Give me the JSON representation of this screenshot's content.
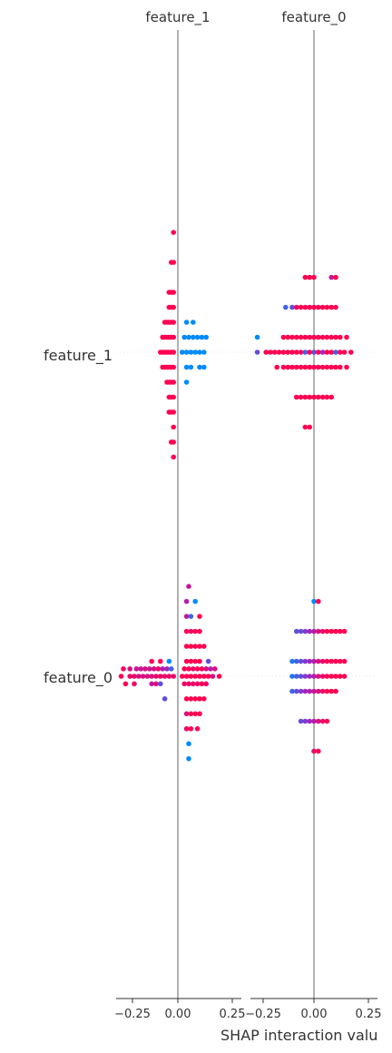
{
  "chart_data": {
    "type": "scatter",
    "subtype": "shap_interaction_summary",
    "xlabel": "SHAP interaction valu",
    "xlim": [
      -0.28,
      0.28
    ],
    "x_ticks": [
      -0.25,
      0.0,
      0.25
    ],
    "x_tick_labels": [
      "−0.25",
      "0.00",
      "0.25"
    ],
    "x_tick_labels_right": [
      "−0.25",
      "0.00",
      "0.25"
    ],
    "columns": [
      "feature_1",
      "feature_0"
    ],
    "rows": [
      "feature_1",
      "feature_0"
    ],
    "colors": {
      "low": "#008bfb",
      "high": "#ff0052",
      "mid": "#a126c1",
      "zero_line": "#999999",
      "row_guide": "#e6e6e6"
    },
    "panels": [
      {
        "column": "feature_1",
        "row": "feature_1",
        "groups": [
          {
            "offset": -8,
            "xs": [
              -0.02
            ],
            "c": [
              1
            ]
          },
          {
            "offset": -6,
            "xs": [
              -0.03,
              -0.02
            ],
            "c": [
              1,
              1
            ]
          },
          {
            "offset": -4,
            "xs": [
              -0.04,
              -0.03,
              -0.02
            ],
            "c": [
              1,
              1,
              1
            ]
          },
          {
            "offset": -3,
            "xs": [
              -0.04,
              -0.03,
              -0.02
            ],
            "c": [
              1,
              1,
              1
            ]
          },
          {
            "offset": -2,
            "xs": [
              -0.06,
              -0.05,
              -0.04,
              -0.03,
              -0.02,
              0.04,
              0.07
            ],
            "c": [
              1,
              1,
              1,
              1,
              1,
              0,
              0
            ]
          },
          {
            "offset": -1,
            "xs": [
              -0.07,
              -0.06,
              -0.05,
              -0.04,
              -0.03,
              -0.02,
              0.03,
              0.05,
              0.07,
              0.09,
              0.11,
              0.13
            ],
            "c": [
              1,
              1,
              1,
              1,
              1,
              1,
              0,
              0,
              0,
              0,
              0,
              0
            ]
          },
          {
            "offset": 0,
            "xs": [
              -0.08,
              -0.07,
              -0.06,
              -0.05,
              -0.04,
              -0.03,
              -0.02,
              0.02,
              0.04,
              0.06,
              0.08,
              0.1,
              0.12
            ],
            "c": [
              1,
              1,
              1,
              1,
              1,
              1,
              1,
              0,
              0,
              0,
              0,
              0,
              0
            ]
          },
          {
            "offset": 1,
            "xs": [
              -0.07,
              -0.06,
              -0.05,
              -0.04,
              -0.03,
              -0.02,
              0.04,
              0.06,
              0.1,
              0.12
            ],
            "c": [
              1,
              1,
              1,
              1,
              1,
              1,
              0,
              0,
              0,
              0
            ]
          },
          {
            "offset": 2,
            "xs": [
              -0.05,
              -0.04,
              -0.03,
              -0.02,
              0.04
            ],
            "c": [
              1,
              1,
              1,
              1,
              0
            ]
          },
          {
            "offset": 3,
            "xs": [
              -0.04,
              -0.03,
              -0.02
            ],
            "c": [
              1,
              1,
              1
            ]
          },
          {
            "offset": 4,
            "xs": [
              -0.04,
              -0.03,
              -0.02
            ],
            "c": [
              1,
              1,
              1
            ]
          },
          {
            "offset": 5,
            "xs": [
              -0.02
            ],
            "c": [
              1
            ]
          },
          {
            "offset": 6,
            "xs": [
              -0.03,
              -0.02
            ],
            "c": [
              1,
              1
            ]
          },
          {
            "offset": 7,
            "xs": [
              -0.02
            ],
            "c": [
              1
            ]
          }
        ]
      },
      {
        "column": "feature_0",
        "row": "feature_1",
        "groups": [
          {
            "offset": -5,
            "xs": [
              -0.04,
              -0.02,
              0.0,
              0.08,
              0.1
            ],
            "c": [
              1,
              1,
              1,
              0.7,
              1
            ]
          },
          {
            "offset": -3,
            "xs": [
              -0.13,
              -0.1,
              -0.08,
              -0.06,
              -0.04,
              -0.02,
              0.0,
              0.02,
              0.04,
              0.06,
              0.08,
              0.1
            ],
            "c": [
              0.2,
              0.3,
              0.9,
              1,
              1,
              1,
              1,
              1,
              1,
              1,
              1,
              1
            ]
          },
          {
            "offset": -1,
            "xs": [
              -0.26,
              -0.14,
              -0.12,
              -0.1,
              -0.08,
              -0.06,
              -0.04,
              -0.02,
              0.0,
              0.02,
              0.04,
              0.06,
              0.08,
              0.1,
              0.12,
              0.15
            ],
            "c": [
              0,
              1,
              1,
              1,
              1,
              1,
              1,
              1,
              1,
              1,
              1,
              1,
              1,
              1,
              1,
              1
            ]
          },
          {
            "offset": 0,
            "xs": [
              -0.26,
              -0.22,
              -0.2,
              -0.18,
              -0.16,
              -0.14,
              -0.12,
              -0.1,
              -0.08,
              -0.06,
              -0.04,
              -0.02,
              0.0,
              0.02,
              0.04,
              0.06,
              0.08,
              0.1,
              0.12,
              0.14,
              0.17
            ],
            "c": [
              0.3,
              1,
              1,
              1,
              1,
              1,
              1,
              1,
              1,
              1,
              0.2,
              1,
              0.3,
              1,
              0.5,
              1,
              1,
              0.2,
              1,
              1,
              1
            ]
          },
          {
            "offset": 1,
            "xs": [
              -0.17,
              -0.14,
              -0.12,
              -0.1,
              -0.08,
              -0.06,
              -0.04,
              -0.02,
              0.0,
              0.02,
              0.04,
              0.06,
              0.08,
              0.1,
              0.12,
              0.15
            ],
            "c": [
              1,
              1,
              1,
              1,
              1,
              1,
              1,
              1,
              1,
              1,
              1,
              1,
              1,
              1,
              1,
              1
            ]
          },
          {
            "offset": 3,
            "xs": [
              -0.08,
              -0.06,
              -0.04,
              -0.02,
              0.0,
              0.02,
              0.04,
              0.06,
              0.08
            ],
            "c": [
              1,
              1,
              1,
              1,
              1,
              1,
              1,
              1,
              1
            ]
          },
          {
            "offset": 5,
            "xs": [
              -0.04,
              -0.02
            ],
            "c": [
              1,
              1
            ]
          }
        ]
      },
      {
        "column": "feature_1",
        "row": "feature_0",
        "groups": [
          {
            "offset": -6,
            "xs": [
              0.05
            ],
            "c": [
              0.7
            ]
          },
          {
            "offset": -5,
            "xs": [
              0.04,
              0.08
            ],
            "c": [
              0.6,
              0
            ]
          },
          {
            "offset": -4,
            "xs": [
              0.04,
              0.06,
              0.1
            ],
            "c": [
              0.7,
              0.2,
              1
            ]
          },
          {
            "offset": -3,
            "xs": [
              0.04,
              0.06,
              0.08,
              0.1
            ],
            "c": [
              1,
              0.9,
              1,
              1
            ]
          },
          {
            "offset": -2,
            "xs": [
              0.04,
              0.06,
              0.08,
              0.1,
              0.12
            ],
            "c": [
              1,
              1,
              1,
              1,
              1
            ]
          },
          {
            "offset": -1,
            "xs": [
              -0.12,
              -0.08,
              -0.04,
              0.04,
              0.06,
              0.08,
              0.1,
              0.14
            ],
            "c": [
              1,
              1,
              0,
              1,
              1,
              1,
              1,
              0.3
            ]
          },
          {
            "offset": -0.5,
            "xs": [
              -0.25,
              -0.22,
              -0.19,
              -0.17,
              -0.15,
              -0.13,
              -0.11,
              -0.09,
              -0.07,
              -0.05,
              -0.03,
              0.03,
              0.05,
              0.07,
              0.09,
              0.11,
              0.13,
              0.15,
              0.17
            ],
            "c": [
              1,
              0.8,
              0.7,
              0.7,
              0.8,
              0.7,
              0.8,
              0.9,
              0.6,
              0.5,
              0.2,
              1,
              1,
              0.9,
              1,
              0.9,
              0.8,
              0.6,
              0.8
            ]
          },
          {
            "offset": 0,
            "xs": [
              -0.26,
              -0.22,
              -0.2,
              -0.18,
              -0.16,
              -0.14,
              -0.12,
              -0.1,
              -0.08,
              -0.06,
              -0.04,
              -0.02,
              0.02,
              0.04,
              0.06,
              0.08,
              0.1,
              0.12,
              0.14,
              0.16,
              0.19
            ],
            "c": [
              1,
              0.9,
              0.9,
              0.8,
              0.8,
              0.8,
              0.8,
              0.9,
              0.9,
              0.9,
              0.9,
              0.9,
              1,
              1,
              1,
              1,
              1,
              1,
              1,
              0.8,
              1
            ]
          },
          {
            "offset": 0.5,
            "xs": [
              -0.24,
              -0.2,
              -0.12,
              -0.1,
              -0.08,
              0.03,
              0.05,
              0.07,
              0.09,
              0.11,
              0.13
            ],
            "c": [
              1,
              0.9,
              0.7,
              0.8,
              0.3,
              0.9,
              0.9,
              0.9,
              0.9,
              1,
              0.9
            ]
          },
          {
            "offset": 1.5,
            "xs": [
              -0.06,
              0.04,
              0.06,
              0.08,
              0.1,
              0.12
            ],
            "c": [
              0.3,
              1,
              1,
              1,
              1,
              1
            ]
          },
          {
            "offset": 2.5,
            "xs": [
              0.04,
              0.06,
              0.08,
              0.1
            ],
            "c": [
              0.8,
              1,
              1,
              1
            ]
          },
          {
            "offset": 3.5,
            "xs": [
              0.04,
              0.06,
              0.09
            ],
            "c": [
              0.9,
              1,
              1
            ]
          },
          {
            "offset": 4.5,
            "xs": [
              0.05
            ],
            "c": [
              0
            ]
          },
          {
            "offset": 5.5,
            "xs": [
              0.05
            ],
            "c": [
              0
            ]
          }
        ]
      },
      {
        "column": "feature_0",
        "row": "feature_0",
        "groups": [
          {
            "offset": -5,
            "xs": [
              0.0,
              0.02
            ],
            "c": [
              0,
              1
            ]
          },
          {
            "offset": -3,
            "xs": [
              -0.08,
              -0.06,
              -0.04,
              -0.02,
              0.0,
              0.02,
              0.04,
              0.06,
              0.08,
              0.1,
              0.12,
              0.14
            ],
            "c": [
              0.3,
              0.3,
              0.4,
              0.5,
              0.6,
              0.8,
              0.9,
              1,
              1,
              1,
              1,
              1
            ]
          },
          {
            "offset": -1,
            "xs": [
              -0.1,
              -0.08,
              -0.06,
              -0.04,
              -0.02,
              0.0,
              0.02,
              0.04,
              0.06,
              0.08,
              0.1,
              0.12,
              0.14
            ],
            "c": [
              0.1,
              0.2,
              0.3,
              0.4,
              0.5,
              0.6,
              0.8,
              0.9,
              1,
              1,
              1,
              1,
              1
            ]
          },
          {
            "offset": 0,
            "xs": [
              -0.1,
              -0.08,
              -0.06,
              -0.04,
              -0.02,
              0.0,
              0.02,
              0.04,
              0.06,
              0.08,
              0.1,
              0.12,
              0.14
            ],
            "c": [
              0.1,
              0.2,
              0.3,
              0.4,
              0.5,
              0.6,
              0.8,
              0.9,
              1,
              1,
              1,
              1,
              1
            ]
          },
          {
            "offset": 1,
            "xs": [
              -0.1,
              -0.08,
              -0.06,
              -0.04,
              -0.02,
              0.0,
              0.02,
              0.04,
              0.06,
              0.08,
              0.1
            ],
            "c": [
              0.2,
              0.3,
              0.4,
              0.5,
              0.6,
              0.7,
              0.8,
              0.9,
              1,
              1,
              1
            ]
          },
          {
            "offset": 3,
            "xs": [
              -0.06,
              -0.04,
              -0.02,
              0.0,
              0.02,
              0.04,
              0.06
            ],
            "c": [
              0.3,
              0.4,
              0.5,
              0.6,
              0.8,
              0.9,
              1
            ]
          },
          {
            "offset": 5,
            "xs": [
              0.0,
              0.02
            ],
            "c": [
              0.9,
              1
            ]
          }
        ]
      }
    ]
  }
}
